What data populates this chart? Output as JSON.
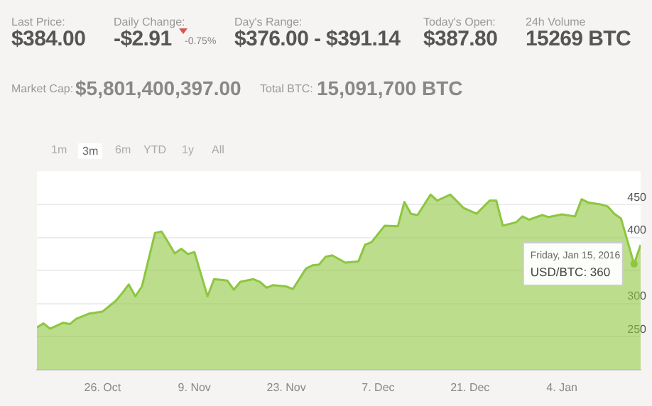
{
  "chart_data": {
    "type": "area",
    "x": [
      "2015-10-16",
      "2015-10-17",
      "2015-10-18",
      "2015-10-20",
      "2015-10-21",
      "2015-10-22",
      "2015-10-24",
      "2015-10-26",
      "2015-10-28",
      "2015-10-29",
      "2015-10-30",
      "2015-10-31",
      "2015-11-01",
      "2015-11-03",
      "2015-11-04",
      "2015-11-05",
      "2015-11-06",
      "2015-11-07",
      "2015-11-08",
      "2015-11-09",
      "2015-11-11",
      "2015-11-12",
      "2015-11-14",
      "2015-11-15",
      "2015-11-16",
      "2015-11-18",
      "2015-11-19",
      "2015-11-20",
      "2015-11-21",
      "2015-11-23",
      "2015-11-24",
      "2015-11-26",
      "2015-11-27",
      "2015-11-28",
      "2015-11-29",
      "2015-11-30",
      "2015-12-02",
      "2015-12-04",
      "2015-12-05",
      "2015-12-06",
      "2015-12-08",
      "2015-12-10",
      "2015-12-11",
      "2015-12-12",
      "2015-12-13",
      "2015-12-15",
      "2015-12-16",
      "2015-12-18",
      "2015-12-20",
      "2015-12-22",
      "2015-12-24",
      "2015-12-25",
      "2015-12-26",
      "2015-12-28",
      "2015-12-29",
      "2015-12-30",
      "2016-01-01",
      "2016-01-02",
      "2016-01-04",
      "2016-01-06",
      "2016-01-07",
      "2016-01-08",
      "2016-01-10",
      "2016-01-11",
      "2016-01-12",
      "2016-01-13",
      "2016-01-15",
      "2016-01-16"
    ],
    "series": [
      {
        "color": "#8dc63f",
        "values": [
          264,
          270,
          262,
          271,
          269,
          277,
          285,
          288,
          304,
          316,
          329,
          311,
          326,
          407,
          409,
          393,
          376,
          383,
          375,
          378,
          311,
          337,
          335,
          321,
          333,
          337,
          333,
          324,
          328,
          326,
          322,
          353,
          358,
          359,
          371,
          373,
          362,
          364,
          389,
          393,
          418,
          417,
          454,
          436,
          434,
          465,
          456,
          465,
          445,
          436,
          456,
          456,
          418,
          423,
          432,
          427,
          434,
          431,
          435,
          432,
          458,
          453,
          450,
          447,
          436,
          429,
          360,
          389
        ]
      }
    ],
    "xlim": [
      "2015-10-16",
      "2016-01-16"
    ],
    "xticks": [
      {
        "value": "2015-10-26",
        "label": "26. Oct"
      },
      {
        "value": "2015-11-09",
        "label": "9. Nov"
      },
      {
        "value": "2015-11-23",
        "label": "23. Nov"
      },
      {
        "value": "2015-12-07",
        "label": "7. Dec"
      },
      {
        "value": "2015-12-21",
        "label": "21. Dec"
      },
      {
        "value": "2016-01-04",
        "label": "4. Jan"
      }
    ],
    "ylim": [
      200,
      500
    ],
    "yticks": [
      250,
      300,
      {
        "value": 350,
        "label": null
      },
      400,
      450
    ],
    "grid": "y",
    "legend": false,
    "marker": "none",
    "annotations": [
      "Last Price:",
      "$384.00",
      "Daily Change:",
      "-$2.91",
      "-0.75%",
      "Day's Range:",
      "$376.00 - $391.14",
      "Today's Open:",
      "$387.80",
      "24h Volume",
      "15269 BTC",
      "Market Cap:",
      "$5,801,400,397.00",
      "Total BTC:",
      "15,091,700 BTC",
      "1m",
      "3m",
      "6m",
      "YTD",
      "1y",
      "All",
      {
        "text": "Friday, Jan 15, 2016\nUSD/BTC: 360",
        "x": "2016-01-15",
        "y": 360
      }
    ]
  }
}
